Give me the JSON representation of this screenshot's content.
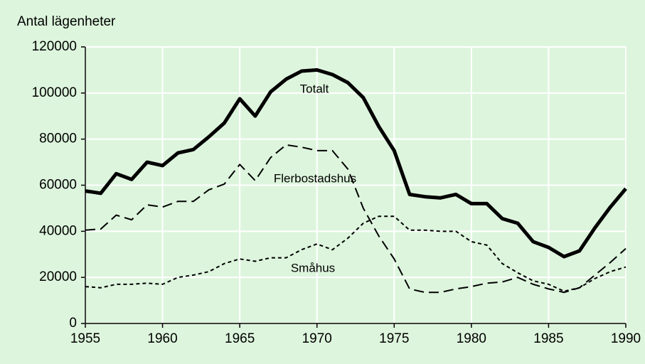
{
  "chart_data": {
    "type": "line",
    "y_label": "Antal lägenheter",
    "x": [
      1955,
      1956,
      1957,
      1958,
      1959,
      1960,
      1961,
      1962,
      1963,
      1964,
      1965,
      1966,
      1967,
      1968,
      1969,
      1970,
      1971,
      1972,
      1973,
      1974,
      1975,
      1976,
      1977,
      1978,
      1979,
      1980,
      1981,
      1982,
      1983,
      1984,
      1985,
      1986,
      1987,
      1988,
      1989,
      1990
    ],
    "series": [
      {
        "name": "Totalt",
        "color": "#000000",
        "linestyle": "solid",
        "values": [
          57500,
          56500,
          65000,
          62500,
          70000,
          68500,
          74000,
          75500,
          81000,
          87000,
          97500,
          90000,
          100500,
          106000,
          109500,
          110000,
          108000,
          104500,
          98000,
          85500,
          75000,
          56000,
          55000,
          54500,
          56000,
          52000,
          52000,
          45500,
          43500,
          35500,
          33000,
          29000,
          31500,
          41500,
          50500,
          58500
        ]
      },
      {
        "name": "Flerbostadshus",
        "color": "#000000",
        "linestyle": "dashed",
        "values": [
          40500,
          41000,
          47000,
          45000,
          51500,
          50500,
          53000,
          53000,
          58000,
          60500,
          69000,
          62000,
          72000,
          77500,
          76500,
          75000,
          75000,
          67000,
          50000,
          38000,
          28000,
          15000,
          13500,
          13500,
          15000,
          16000,
          17500,
          18000,
          20000,
          17000,
          15000,
          13500,
          15500,
          21000,
          26500,
          32500
        ]
      },
      {
        "name": "Småhus",
        "color": "#000000",
        "linestyle": "dotted",
        "values": [
          16000,
          15500,
          17000,
          17000,
          17500,
          17000,
          20000,
          21000,
          22500,
          26000,
          28000,
          27000,
          28500,
          28500,
          32000,
          34500,
          32000,
          37000,
          43500,
          46500,
          46500,
          40500,
          40500,
          40000,
          40000,
          35500,
          34000,
          26000,
          22000,
          18500,
          17000,
          14000,
          15500,
          19500,
          22500,
          24500
        ]
      }
    ],
    "xlim": [
      1955,
      1990
    ],
    "xticks": [
      1955,
      1960,
      1965,
      1970,
      1975,
      1980,
      1985,
      1990
    ],
    "ylim": [
      0,
      120000
    ],
    "yticks": [
      0,
      20000,
      40000,
      60000,
      80000,
      100000,
      120000
    ],
    "grid": true,
    "background": "#ddf5dd",
    "grid_color": "#ffffff"
  }
}
